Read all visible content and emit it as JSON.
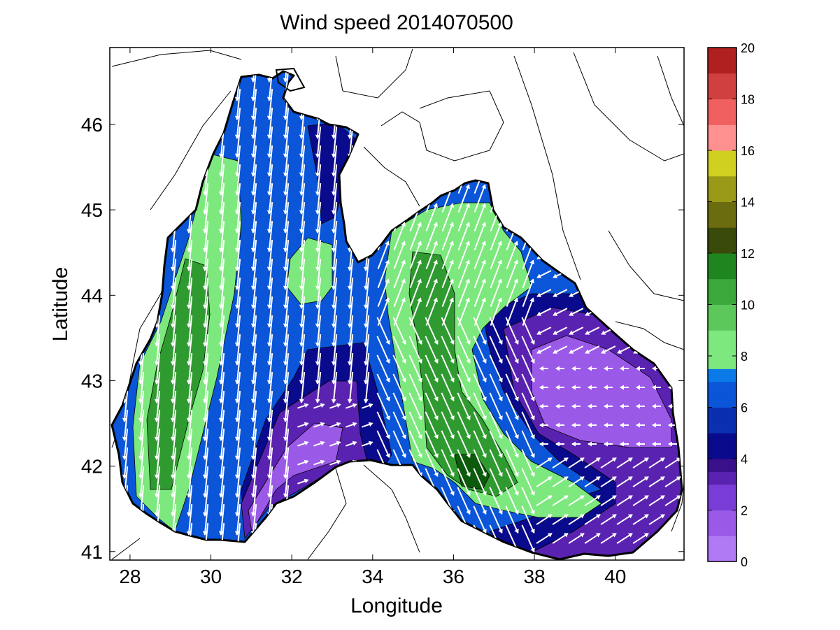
{
  "title": "Wind speed 2014070500",
  "xlabel": "Longitude",
  "ylabel": "Latitude",
  "chart_data": {
    "type": "heatmap",
    "title": "Wind speed 2014070500",
    "xlabel": "Longitude",
    "ylabel": "Latitude",
    "xlim": [
      27.5,
      41.7
    ],
    "ylim": [
      40.9,
      46.9
    ],
    "xticks": [
      28,
      30,
      32,
      34,
      36,
      38,
      40
    ],
    "yticks": [
      41,
      42,
      43,
      44,
      45,
      46
    ],
    "colorbar": {
      "min": 0,
      "max": 20,
      "ticks": [
        0,
        2,
        4,
        6,
        8,
        10,
        12,
        14,
        16,
        18,
        20
      ],
      "bands": [
        {
          "from": 0,
          "to": 3.5,
          "color": "#9b59e8"
        },
        {
          "from": 3.5,
          "to": 5,
          "color": "#0a0a8c"
        },
        {
          "from": 5,
          "to": 7.5,
          "color": "#0a55d8"
        },
        {
          "from": 7.5,
          "to": 10,
          "color": "#7de87d"
        },
        {
          "from": 10,
          "to": 12,
          "color": "#2f9a2f"
        },
        {
          "from": 12,
          "to": 16,
          "color": "#6b6b10"
        },
        {
          "from": 16,
          "to": 20,
          "color": "#c83030"
        }
      ]
    },
    "grid": false
  },
  "colors": {
    "land": "#ffffff",
    "coast": "#000000",
    "arrows": "#ffffff",
    "calm": "#9b59e8",
    "light": "#5a22b0",
    "moderate_dark": "#0a0a8c",
    "moderate": "#0a55d8",
    "fresh": "#7de87d",
    "strong": "#2f9a2f",
    "strongest": "#0c5a0c"
  }
}
